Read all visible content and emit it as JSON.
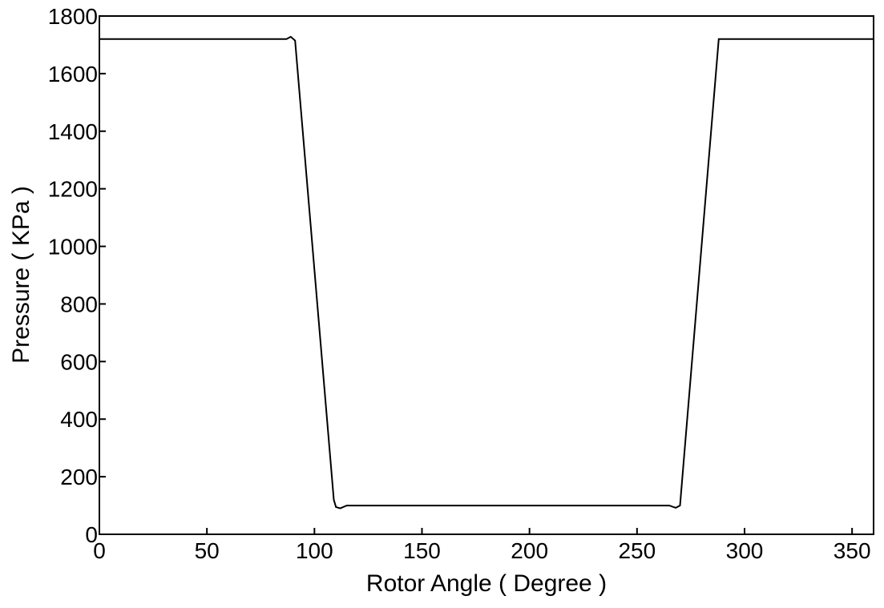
{
  "chart_data": {
    "type": "line",
    "title": "",
    "xlabel": "Rotor Angle ( Degree )",
    "ylabel": "Pressure ( KPa )",
    "xlim": [
      0,
      360
    ],
    "ylim": [
      0,
      1800
    ],
    "xticks": [
      0,
      50,
      100,
      150,
      200,
      250,
      300,
      350
    ],
    "yticks": [
      0,
      200,
      400,
      600,
      800,
      1000,
      1200,
      1400,
      1600,
      1800
    ],
    "grid": false,
    "legend": "none",
    "series": [
      {
        "color": "#000000",
        "x": [
          0,
          87,
          89,
          91,
          109,
          110,
          112,
          115,
          200,
          265,
          268,
          270,
          288,
          290,
          360
        ],
        "y": [
          1720,
          1720,
          1728,
          1715,
          120,
          95,
          90,
          100,
          100,
          100,
          92,
          100,
          1720,
          1720,
          1720
        ]
      }
    ]
  }
}
